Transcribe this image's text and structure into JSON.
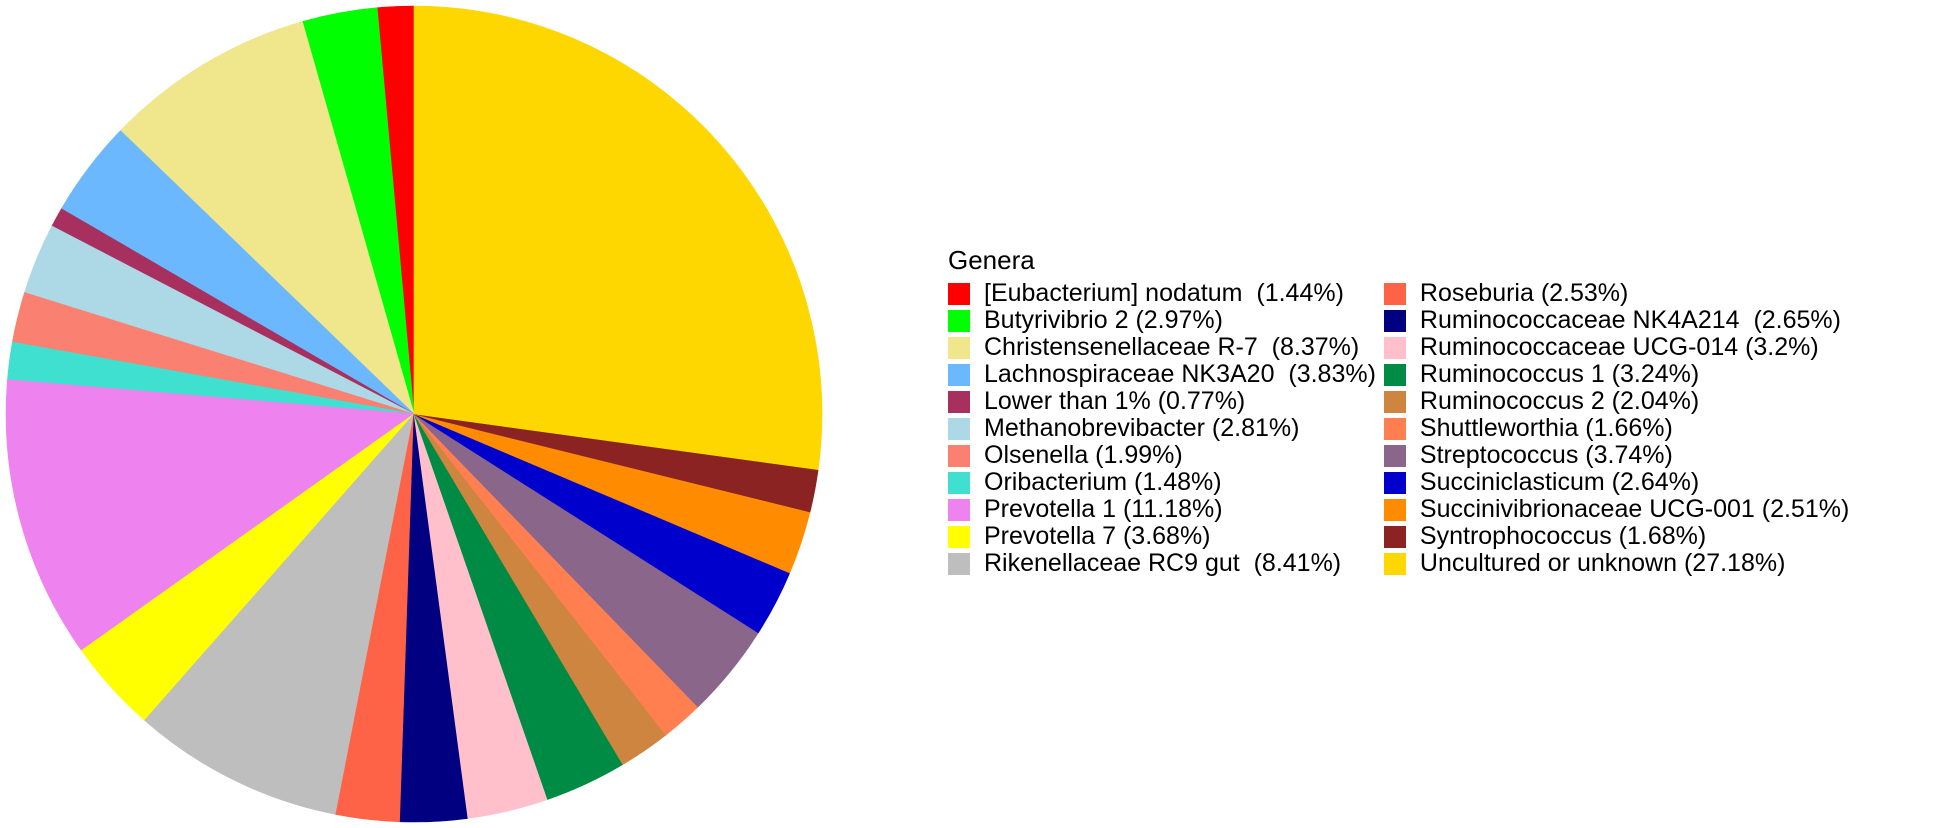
{
  "chart_data": {
    "type": "pie",
    "legend_title": "Genera",
    "legend_placement": "right",
    "slices": [
      {
        "label": "[Eubacterium] nodatum  (1.44%)",
        "value": 1.44,
        "color": "#FF0000"
      },
      {
        "label": "Butyrivibrio 2 (2.97%)",
        "value": 2.97,
        "color": "#00FF00"
      },
      {
        "label": "Christensenellaceae R-7  (8.37%)",
        "value": 8.37,
        "color": "#F0E68C"
      },
      {
        "label": "Lachnospiraceae NK3A20  (3.83%)",
        "value": 3.83,
        "color": "#6CB8FF"
      },
      {
        "label": "Lower than 1% (0.77%)",
        "value": 0.77,
        "color": "#A8305E"
      },
      {
        "label": "Methanobrevibacter (2.81%)",
        "value": 2.81,
        "color": "#ADD8E6"
      },
      {
        "label": "Olsenella (1.99%)",
        "value": 1.99,
        "color": "#FA8072"
      },
      {
        "label": "Oribacterium (1.48%)",
        "value": 1.48,
        "color": "#40E0D0"
      },
      {
        "label": "Prevotella 1 (11.18%)",
        "value": 11.18,
        "color": "#EE82EE"
      },
      {
        "label": "Prevotella 7 (3.68%)",
        "value": 3.68,
        "color": "#FFFF00"
      },
      {
        "label": "Rikenellaceae RC9 gut  (8.41%)",
        "value": 8.41,
        "color": "#BEBEBE"
      },
      {
        "label": "Roseburia (2.53%)",
        "value": 2.53,
        "color": "#FF6347"
      },
      {
        "label": "Ruminococcaceae NK4A214  (2.65%)",
        "value": 2.65,
        "color": "#000080"
      },
      {
        "label": "Ruminococcaceae UCG-014 (3.2%)",
        "value": 3.2,
        "color": "#FFC0CB"
      },
      {
        "label": "Ruminococcus 1 (3.24%)",
        "value": 3.24,
        "color": "#008B45"
      },
      {
        "label": "Ruminococcus 2 (2.04%)",
        "value": 2.04,
        "color": "#CD853F"
      },
      {
        "label": "Shuttleworthia (1.66%)",
        "value": 1.66,
        "color": "#FF7F50"
      },
      {
        "label": "Streptococcus (3.74%)",
        "value": 3.74,
        "color": "#8B668B"
      },
      {
        "label": "Succiniclasticum (2.64%)",
        "value": 2.64,
        "color": "#0000CD"
      },
      {
        "label": "Succinivibrionaceae UCG-001 (2.51%)",
        "value": 2.51,
        "color": "#FF8C00"
      },
      {
        "label": "Syntrophococcus (1.68%)",
        "value": 1.68,
        "color": "#8B2323"
      },
      {
        "label": "Uncultured or unknown (27.18%)",
        "value": 27.18,
        "color": "#FFD700"
      }
    ]
  }
}
